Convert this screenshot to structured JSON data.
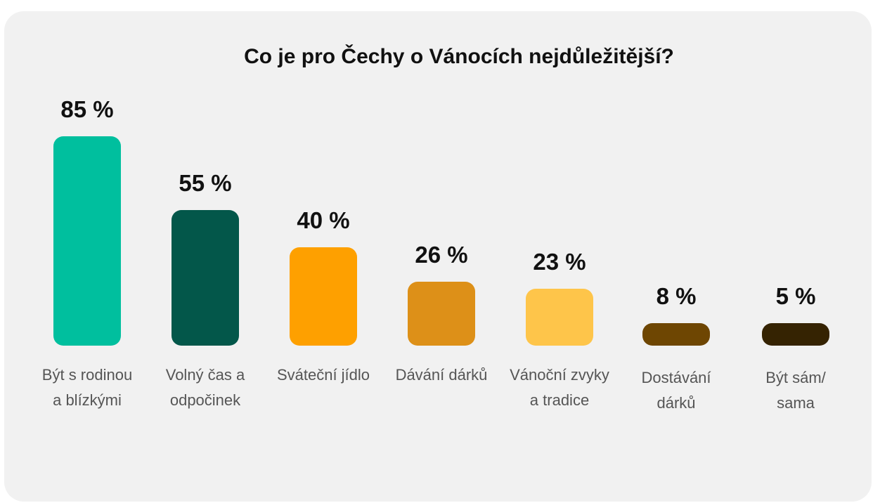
{
  "chart_data": {
    "type": "bar",
    "title": "Co je pro Čechy o Vánocích nejdůležitější?",
    "value_suffix": " %",
    "grid": false,
    "legend": "none",
    "ylim": [
      0,
      100
    ],
    "categories": [
      [
        "Být s rodinou",
        "a blízkými"
      ],
      [
        "Volný čas a",
        "odpočinek"
      ],
      [
        "Sváteční jídlo"
      ],
      [
        "Dávání dárků"
      ],
      [
        "Vánoční zvyky",
        "a tradice"
      ],
      [
        "Dostávání",
        "dárků"
      ],
      [
        "Být sám/",
        "sama"
      ]
    ],
    "values": [
      85,
      55,
      40,
      26,
      23,
      8,
      5
    ],
    "colors": [
      "#00bf9e",
      "#03574a",
      "#fea000",
      "#dd9018",
      "#fec54a",
      "#6e4602",
      "#352302"
    ]
  }
}
